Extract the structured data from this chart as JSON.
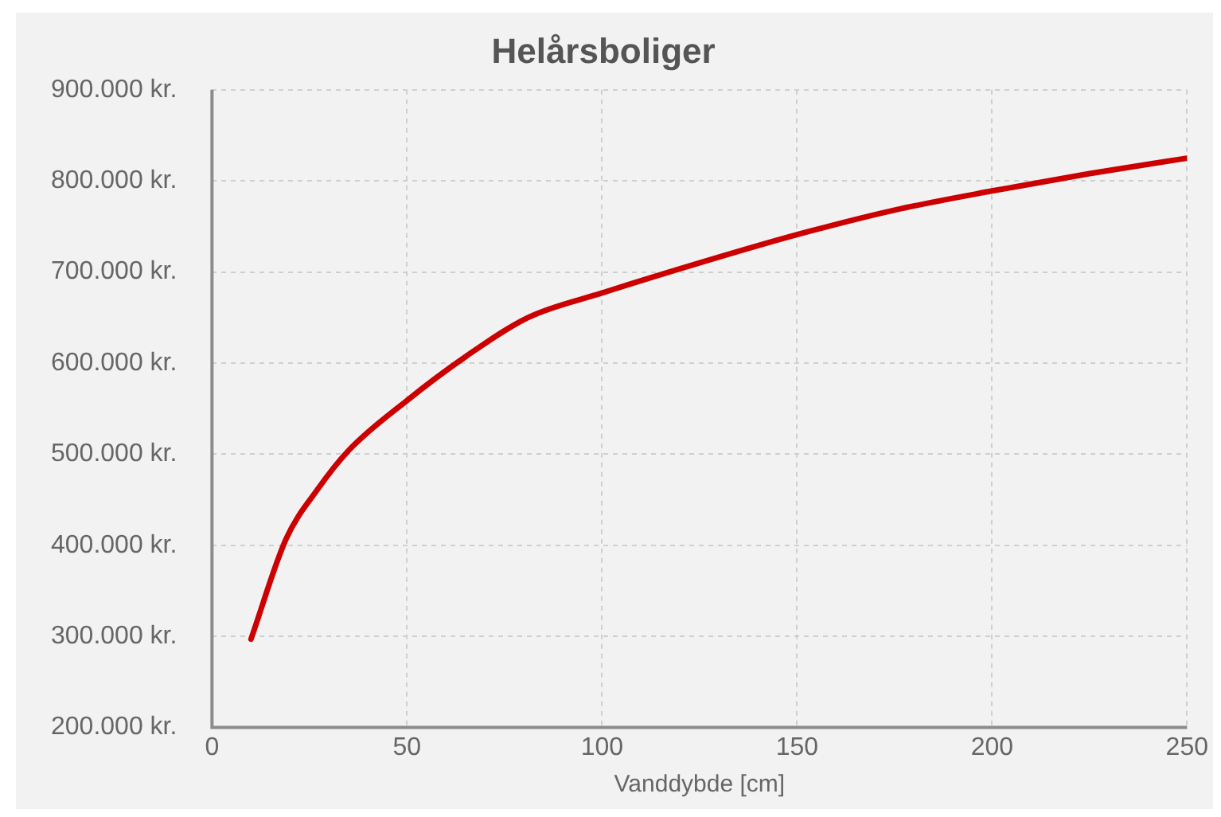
{
  "chart_data": {
    "type": "line",
    "title": "Helårsboliger",
    "xlabel": "Vanddybde [cm]",
    "x": [
      10,
      19,
      27,
      35,
      50,
      65,
      81,
      100,
      125,
      150,
      175,
      200,
      225,
      250
    ],
    "series": [
      {
        "color": "#cc0000",
        "values": [
          297000,
          407000,
          461000,
          504000,
          559000,
          607000,
          650000,
          677000,
          710000,
          741000,
          768000,
          789000,
          808000,
          825000
        ]
      }
    ],
    "xlim": [
      0,
      250
    ],
    "xticks": [
      0,
      50,
      100,
      150,
      200,
      250
    ],
    "ylim": [
      200000,
      900000
    ],
    "yticks": [
      {
        "value": 200000,
        "label": "200.000 kr."
      },
      {
        "value": 300000,
        "label": "300.000 kr."
      },
      {
        "value": 400000,
        "label": "400.000 kr."
      },
      {
        "value": 500000,
        "label": "500.000 kr."
      },
      {
        "value": 600000,
        "label": "600.000 kr."
      },
      {
        "value": 700000,
        "label": "700.000 kr."
      },
      {
        "value": 800000,
        "label": "800.000 kr."
      },
      {
        "value": 900000,
        "label": "900.000 kr."
      }
    ],
    "grid": true,
    "legend": false,
    "marker": "none",
    "line_style": "solid"
  }
}
